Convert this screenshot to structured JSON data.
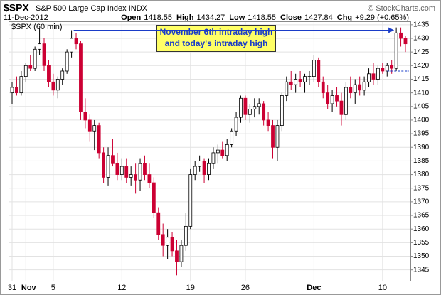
{
  "header": {
    "symbol": "$SPX",
    "name": "S&P 500 Large Cap Index",
    "exchange": "INDX",
    "date": "11-Dec-2012",
    "copyright": "© StockCharts.com",
    "quote": [
      {
        "label": "Open",
        "value": "1418.55"
      },
      {
        "label": "High",
        "value": "1434.27"
      },
      {
        "label": "Low",
        "value": "1418.55"
      },
      {
        "label": "Close",
        "value": "1427.84"
      },
      {
        "label": "Chg",
        "value": "+9.29 (+0.65%)"
      }
    ]
  },
  "chart_data": {
    "type": "candlestick",
    "legend": "$SPX (60 min)",
    "annotation": [
      "November 6th intraday high",
      "and today's intraday high"
    ],
    "up_color": "#000000",
    "down_color": "#cc0033",
    "grid": true,
    "ylim": [
      1341,
      1436
    ],
    "yticks": [
      1345,
      1350,
      1355,
      1360,
      1365,
      1370,
      1375,
      1380,
      1385,
      1390,
      1395,
      1400,
      1405,
      1410,
      1415,
      1420,
      1425,
      1430,
      1435
    ],
    "categories": [
      "31",
      null,
      null,
      "Nov",
      null,
      null,
      null,
      null,
      null,
      "5",
      null,
      null,
      null,
      null,
      null,
      null,
      null,
      null,
      null,
      null,
      null,
      null,
      null,
      null,
      "12",
      null,
      null,
      null,
      null,
      null,
      null,
      null,
      null,
      null,
      null,
      null,
      null,
      null,
      null,
      "19",
      null,
      null,
      null,
      null,
      null,
      null,
      null,
      null,
      null,
      null,
      null,
      "26",
      null,
      null,
      null,
      null,
      null,
      null,
      null,
      null,
      null,
      null,
      null,
      null,
      null,
      null,
      "Dec",
      null,
      null,
      null,
      null,
      null,
      null,
      null,
      null,
      null,
      null,
      null,
      null,
      null,
      null,
      "10",
      null,
      null,
      null,
      null,
      null
    ],
    "open": [
      1410,
      1412,
      1410,
      1416,
      1420,
      1419,
      1426,
      1428,
      1420,
      1414,
      1411,
      1415,
      1418,
      1425,
      1430,
      1428,
      1403,
      1400,
      1396,
      1398,
      1388,
      1379,
      1387,
      1384,
      1380,
      1383,
      1379,
      1380,
      1378,
      1384,
      1380,
      1377,
      1366,
      1358,
      1354,
      1357,
      1352,
      1348,
      1354,
      1361,
      1380,
      1383,
      1385,
      1380,
      1384,
      1388,
      1389,
      1387,
      1391,
      1396,
      1401,
      1408,
      1402,
      1404,
      1405,
      1406,
      1400,
      1398,
      1390,
      1398,
      1409,
      1414,
      1413,
      1415,
      1414,
      1416,
      1416,
      1422,
      1414,
      1410,
      1406,
      1409,
      1407,
      1402,
      1412,
      1410,
      1413,
      1411,
      1414,
      1417,
      1415,
      1419,
      1418,
      1420,
      1419,
      1432,
      1430
    ],
    "high": [
      1414,
      1416,
      1418,
      1421,
      1424,
      1427,
      1434,
      1430,
      1422,
      1417,
      1416,
      1419,
      1426,
      1433,
      1432,
      1429,
      1408,
      1402,
      1400,
      1399,
      1390,
      1390,
      1393,
      1388,
      1386,
      1386,
      1383,
      1384,
      1386,
      1387,
      1384,
      1379,
      1368,
      1362,
      1360,
      1359,
      1356,
      1356,
      1366,
      1382,
      1385,
      1387,
      1386,
      1386,
      1390,
      1391,
      1392,
      1393,
      1397,
      1403,
      1409,
      1409,
      1406,
      1408,
      1408,
      1407,
      1403,
      1400,
      1400,
      1410,
      1416,
      1418,
      1417,
      1418,
      1417,
      1418,
      1424,
      1423,
      1416,
      1413,
      1411,
      1412,
      1410,
      1414,
      1416,
      1415,
      1416,
      1416,
      1419,
      1421,
      1420,
      1421,
      1421,
      1422,
      1434,
      1434,
      1431
    ],
    "low": [
      1406,
      1409,
      1409,
      1414,
      1418,
      1418,
      1424,
      1418,
      1412,
      1409,
      1408,
      1413,
      1417,
      1423,
      1426,
      1400,
      1397,
      1392,
      1389,
      1386,
      1377,
      1376,
      1383,
      1378,
      1378,
      1377,
      1376,
      1373,
      1374,
      1378,
      1375,
      1364,
      1356,
      1350,
      1349,
      1350,
      1343,
      1346,
      1352,
      1360,
      1378,
      1381,
      1377,
      1378,
      1382,
      1384,
      1386,
      1385,
      1390,
      1394,
      1399,
      1400,
      1399,
      1401,
      1402,
      1398,
      1396,
      1386,
      1385,
      1396,
      1407,
      1411,
      1410,
      1412,
      1410,
      1413,
      1414,
      1412,
      1408,
      1404,
      1403,
      1405,
      1398,
      1400,
      1408,
      1406,
      1409,
      1409,
      1412,
      1413,
      1413,
      1417,
      1416,
      1417,
      1418,
      1427,
      1425
    ],
    "close": [
      1412,
      1410,
      1416,
      1420,
      1419,
      1426,
      1428,
      1420,
      1414,
      1411,
      1415,
      1418,
      1425,
      1430,
      1428,
      1403,
      1400,
      1396,
      1398,
      1388,
      1379,
      1387,
      1384,
      1380,
      1383,
      1379,
      1380,
      1378,
      1384,
      1380,
      1377,
      1366,
      1358,
      1354,
      1357,
      1352,
      1348,
      1354,
      1361,
      1380,
      1383,
      1385,
      1380,
      1384,
      1388,
      1389,
      1387,
      1391,
      1396,
      1401,
      1408,
      1402,
      1404,
      1405,
      1406,
      1400,
      1398,
      1390,
      1398,
      1409,
      1414,
      1413,
      1415,
      1414,
      1416,
      1416,
      1422,
      1414,
      1410,
      1406,
      1409,
      1407,
      1402,
      1412,
      1410,
      1413,
      1411,
      1414,
      1417,
      1415,
      1419,
      1418,
      1420,
      1419,
      1432,
      1430,
      1428
    ]
  }
}
